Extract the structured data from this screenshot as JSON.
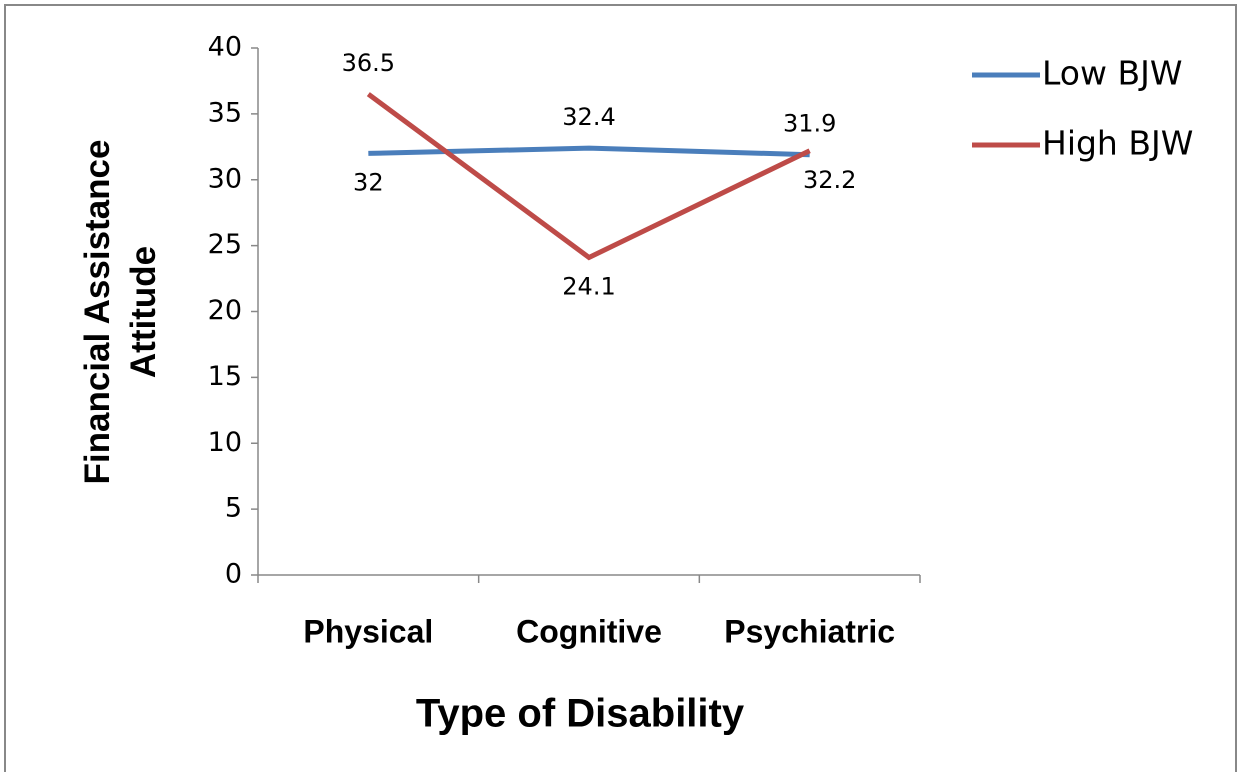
{
  "chart_data": {
    "type": "line",
    "x_label": "Type of Disability",
    "y_label": "Financial Assistance Attitude",
    "categories": [
      "Physical",
      "Cognitive",
      "Psychiatric"
    ],
    "series": [
      {
        "name": "Low BJW",
        "color": "#4a7ebb",
        "values": [
          32,
          32.4,
          31.9
        ]
      },
      {
        "name": "High BJW",
        "color": "#be4b48",
        "values": [
          36.5,
          24.1,
          32.2
        ]
      }
    ],
    "ylim": [
      0,
      40
    ],
    "yticks": [
      0,
      5,
      10,
      15,
      20,
      25,
      30,
      35,
      40
    ],
    "grid": false,
    "legend": "right"
  }
}
